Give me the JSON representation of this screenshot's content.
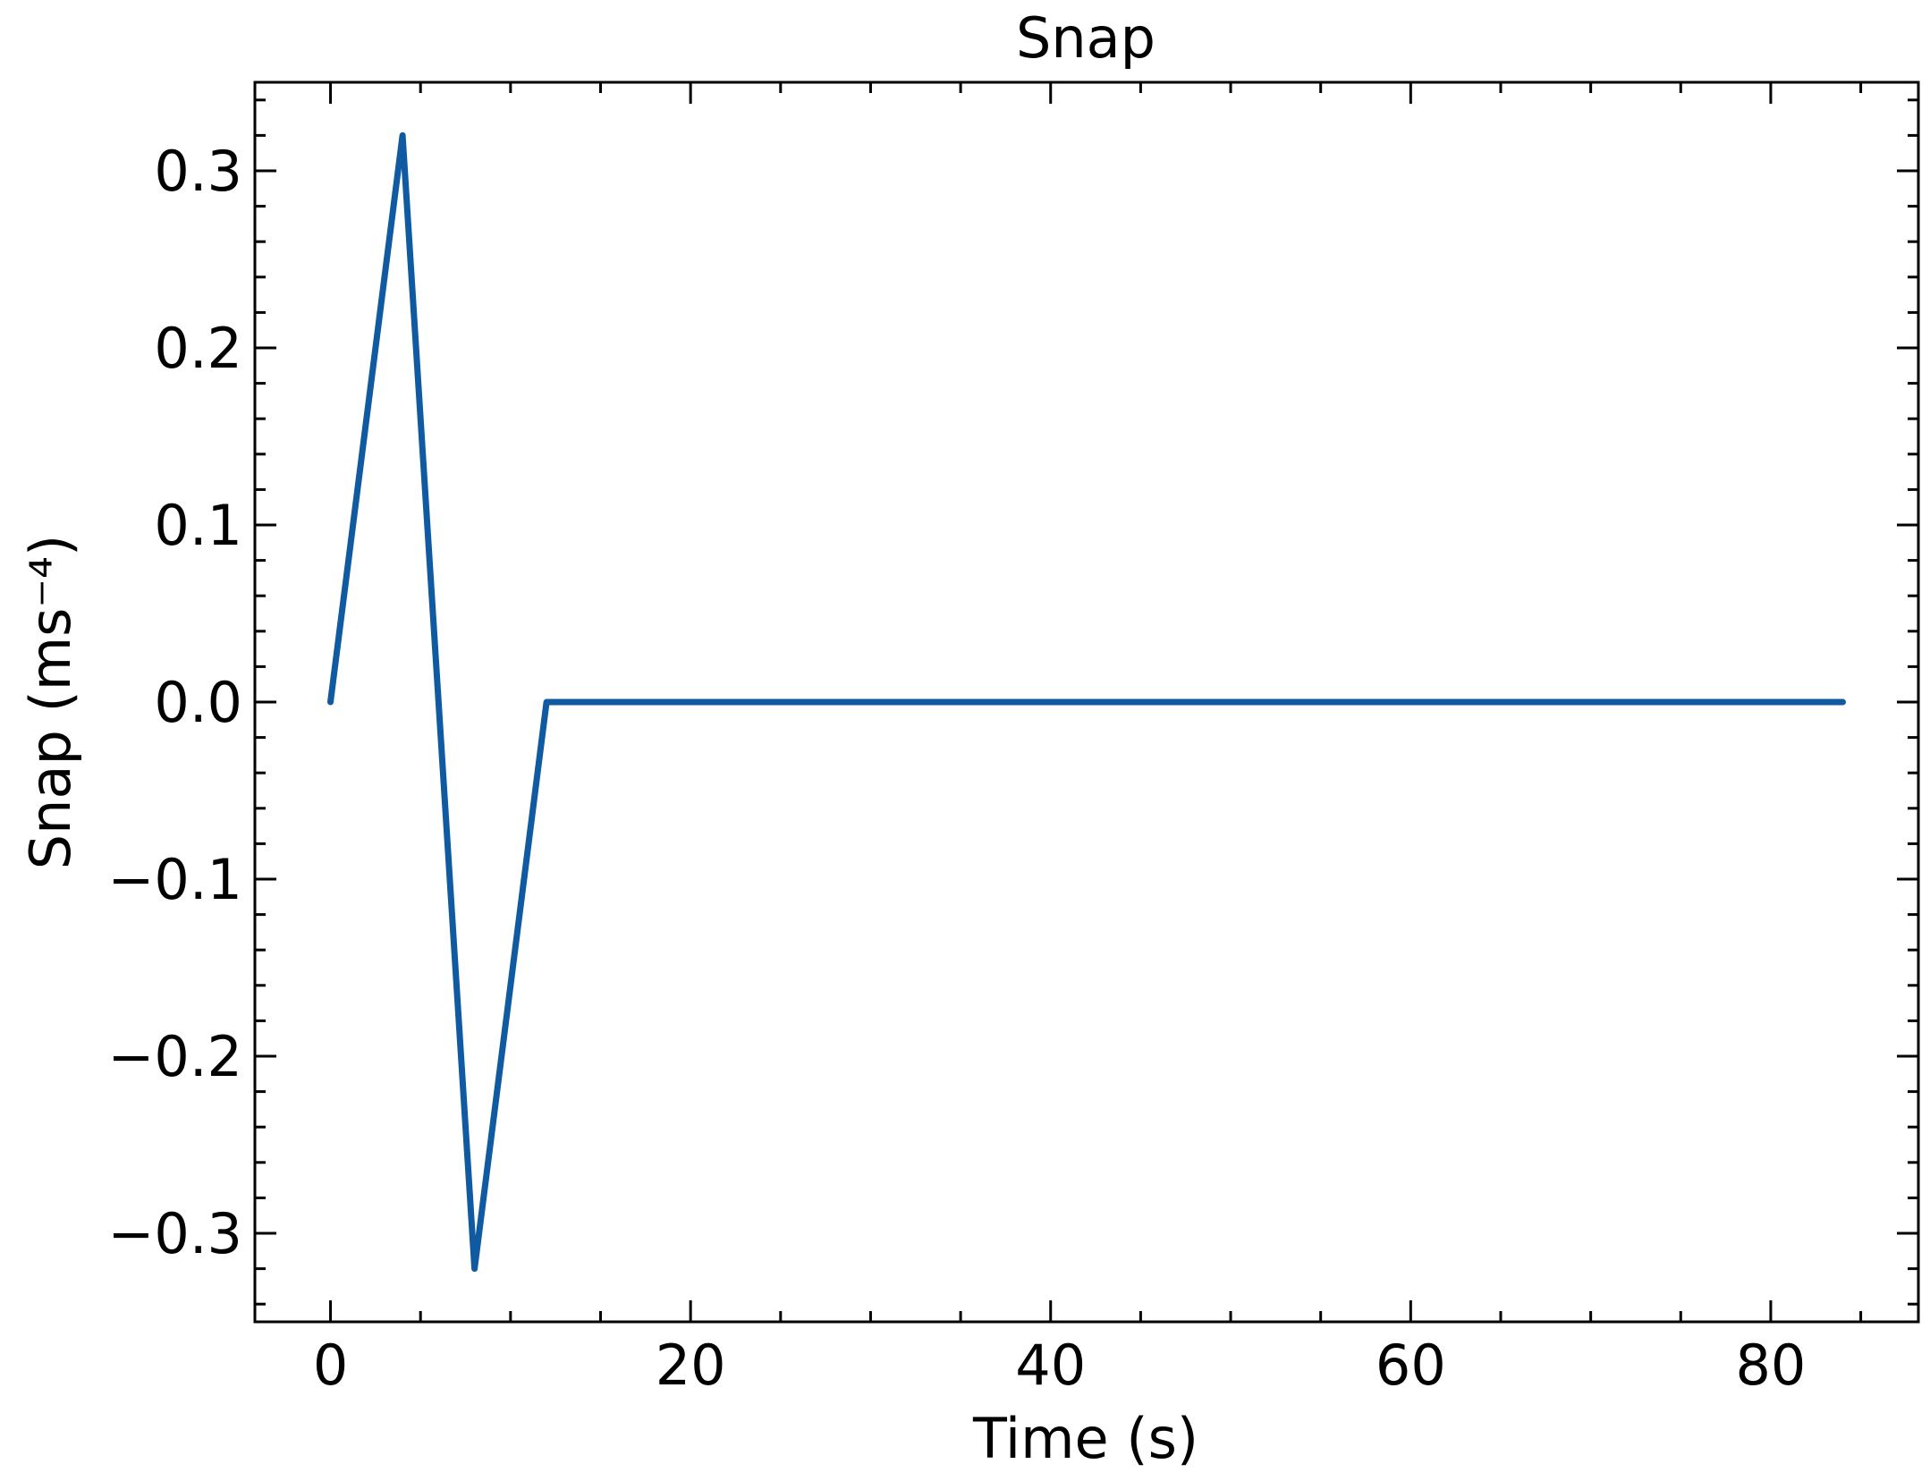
{
  "chart_data": {
    "type": "line",
    "title": "Snap",
    "xlabel": "Time (s)",
    "ylabel": "Snap (ms⁻⁴)",
    "xlim": [
      -4.2,
      88.2
    ],
    "ylim": [
      -0.35,
      0.35
    ],
    "x_ticks": [
      0,
      20,
      40,
      60,
      80
    ],
    "x_tick_labels": [
      "0",
      "20",
      "40",
      "60",
      "80"
    ],
    "x_minor_step": 5,
    "y_ticks": [
      -0.3,
      -0.2,
      -0.1,
      0.0,
      0.1,
      0.2,
      0.3
    ],
    "y_tick_labels": [
      "−0.3",
      "−0.2",
      "−0.1",
      "0.0",
      "0.1",
      "0.2",
      "0.3"
    ],
    "y_minor_step": 0.02,
    "tick_direction": "in",
    "ticks_on_all_sides": true,
    "grid": false,
    "series": [
      {
        "color": "#0f5aa0",
        "x": [
          0,
          4,
          8,
          12,
          84
        ],
        "y": [
          0.0,
          0.32,
          -0.32,
          0.0,
          0.0
        ]
      }
    ]
  }
}
